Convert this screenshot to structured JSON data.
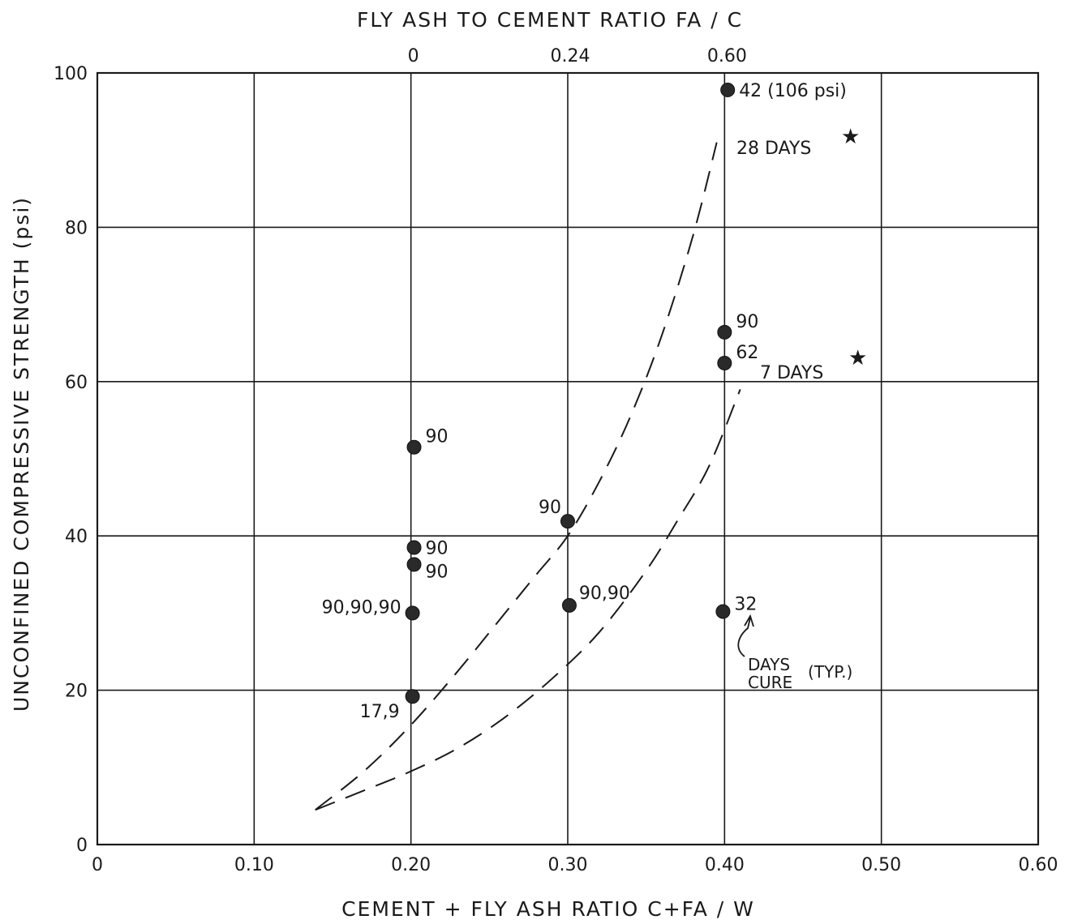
{
  "chart_data": {
    "type": "scatter",
    "top_axis": {
      "title": "FLY ASH TO CEMENT RATIO   FA / C",
      "ticks": [
        {
          "x": 0.2,
          "label": "0"
        },
        {
          "x": 0.3,
          "label": "0.24"
        },
        {
          "x": 0.4,
          "label": "0.60"
        }
      ]
    },
    "xlabel": "CEMENT + FLY ASH RATIO   C+FA / W",
    "ylabel": "UNCONFINED  COMPRESSIVE  STRENGTH (psi)",
    "xlim": [
      0,
      0.6
    ],
    "ylim": [
      0,
      100
    ],
    "x_ticks": [
      0,
      0.1,
      0.2,
      0.3,
      0.4,
      0.5,
      0.6
    ],
    "x_tick_labels": [
      "0",
      "0.10",
      "0.20",
      "0.30",
      "0.40",
      "0.50",
      "0.60"
    ],
    "y_ticks": [
      0,
      20,
      40,
      60,
      80,
      100
    ],
    "y_tick_labels": [
      "0",
      "20",
      "40",
      "60",
      "80",
      "100"
    ],
    "grid": true,
    "points": [
      {
        "x": 0.402,
        "y": 97.8,
        "label": "42 (106 psi)"
      },
      {
        "x": 0.4,
        "y": 66.4,
        "label": "90"
      },
      {
        "x": 0.4,
        "y": 62.4,
        "label": "62"
      },
      {
        "x": 0.399,
        "y": 30.2,
        "label": "32"
      },
      {
        "x": 0.3,
        "y": 41.9,
        "label": "90"
      },
      {
        "x": 0.301,
        "y": 31.0,
        "label": "90,90"
      },
      {
        "x": 0.202,
        "y": 51.5,
        "label": "90"
      },
      {
        "x": 0.202,
        "y": 38.5,
        "label": "90"
      },
      {
        "x": 0.202,
        "y": 36.3,
        "label": "90"
      },
      {
        "x": 0.201,
        "y": 30.0,
        "label": "90,90,90"
      },
      {
        "x": 0.201,
        "y": 19.2,
        "label": "17,9"
      }
    ],
    "curves": [
      {
        "label": "28 DAYS",
        "style": "dashed",
        "x": [
          0.139,
          0.17,
          0.2,
          0.23,
          0.26,
          0.28,
          0.3,
          0.32,
          0.34,
          0.36,
          0.38,
          0.395
        ],
        "y": [
          4.5,
          9.5,
          15.5,
          22.5,
          30.0,
          35.0,
          40.0,
          47.0,
          55.5,
          66.0,
          79.0,
          91.0
        ]
      },
      {
        "label": "7 DAYS",
        "style": "dashed",
        "x": [
          0.139,
          0.17,
          0.2,
          0.23,
          0.26,
          0.29,
          0.32,
          0.35,
          0.37,
          0.39,
          0.41
        ],
        "y": [
          4.5,
          7.0,
          9.5,
          12.5,
          16.5,
          21.5,
          27.5,
          35.5,
          42.0,
          49.0,
          59.0
        ]
      }
    ],
    "annotations": {
      "days_28": "28 DAYS",
      "days_7": "7 DAYS",
      "star": "★",
      "days_cure_1": "DAYS",
      "days_cure_2": "CURE",
      "typ": "(TYP.)"
    }
  }
}
